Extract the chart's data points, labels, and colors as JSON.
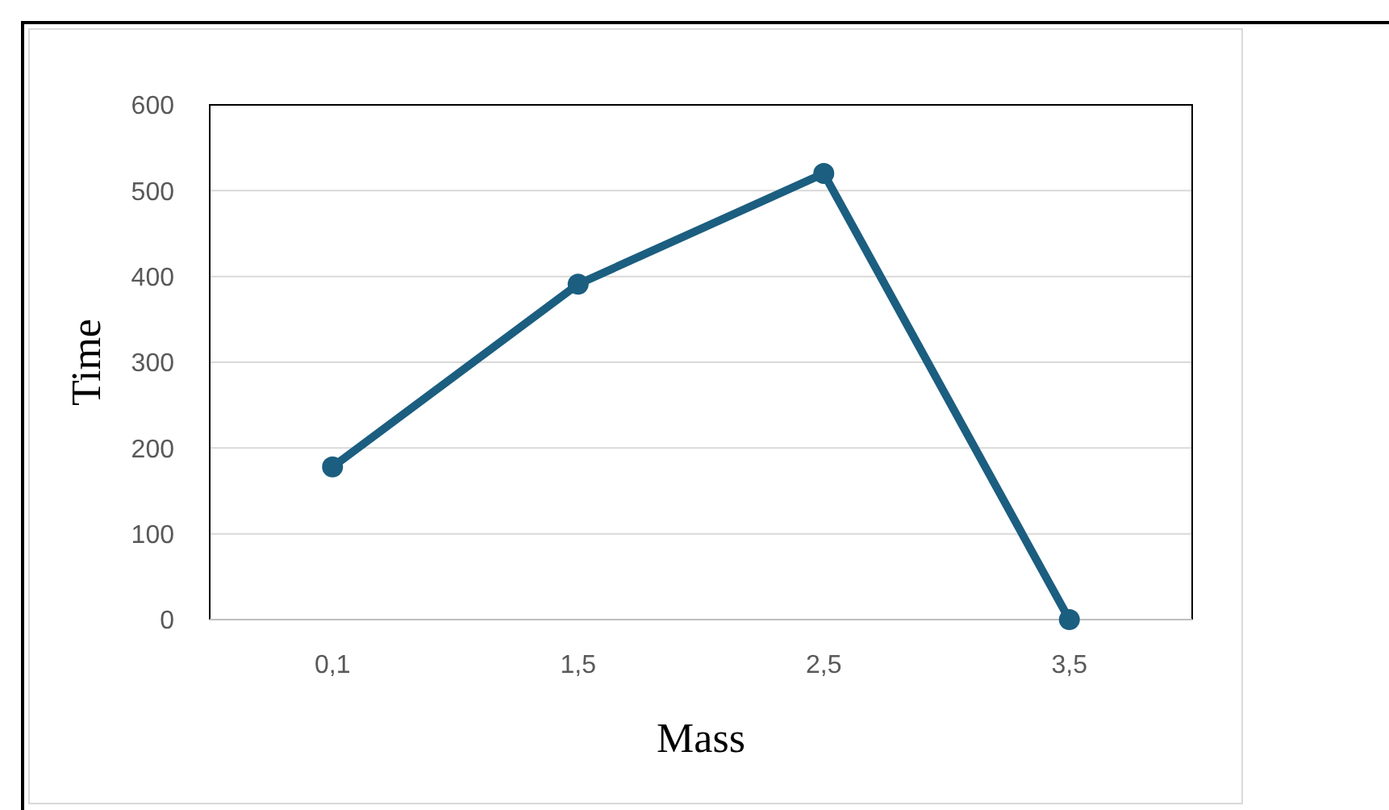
{
  "chart_data": {
    "type": "line",
    "xlabel": "Mass",
    "ylabel": "Time",
    "categories": [
      "0,1",
      "1,5",
      "2,5",
      "3,5"
    ],
    "series": [
      {
        "color": "#1b5e80",
        "values": [
          178,
          391,
          520,
          0
        ]
      }
    ],
    "ylim": [
      0,
      600
    ],
    "yticks": [
      0,
      100,
      200,
      300,
      400,
      500,
      600
    ],
    "grid": "y",
    "marker": "circle",
    "line_style": "solid"
  }
}
